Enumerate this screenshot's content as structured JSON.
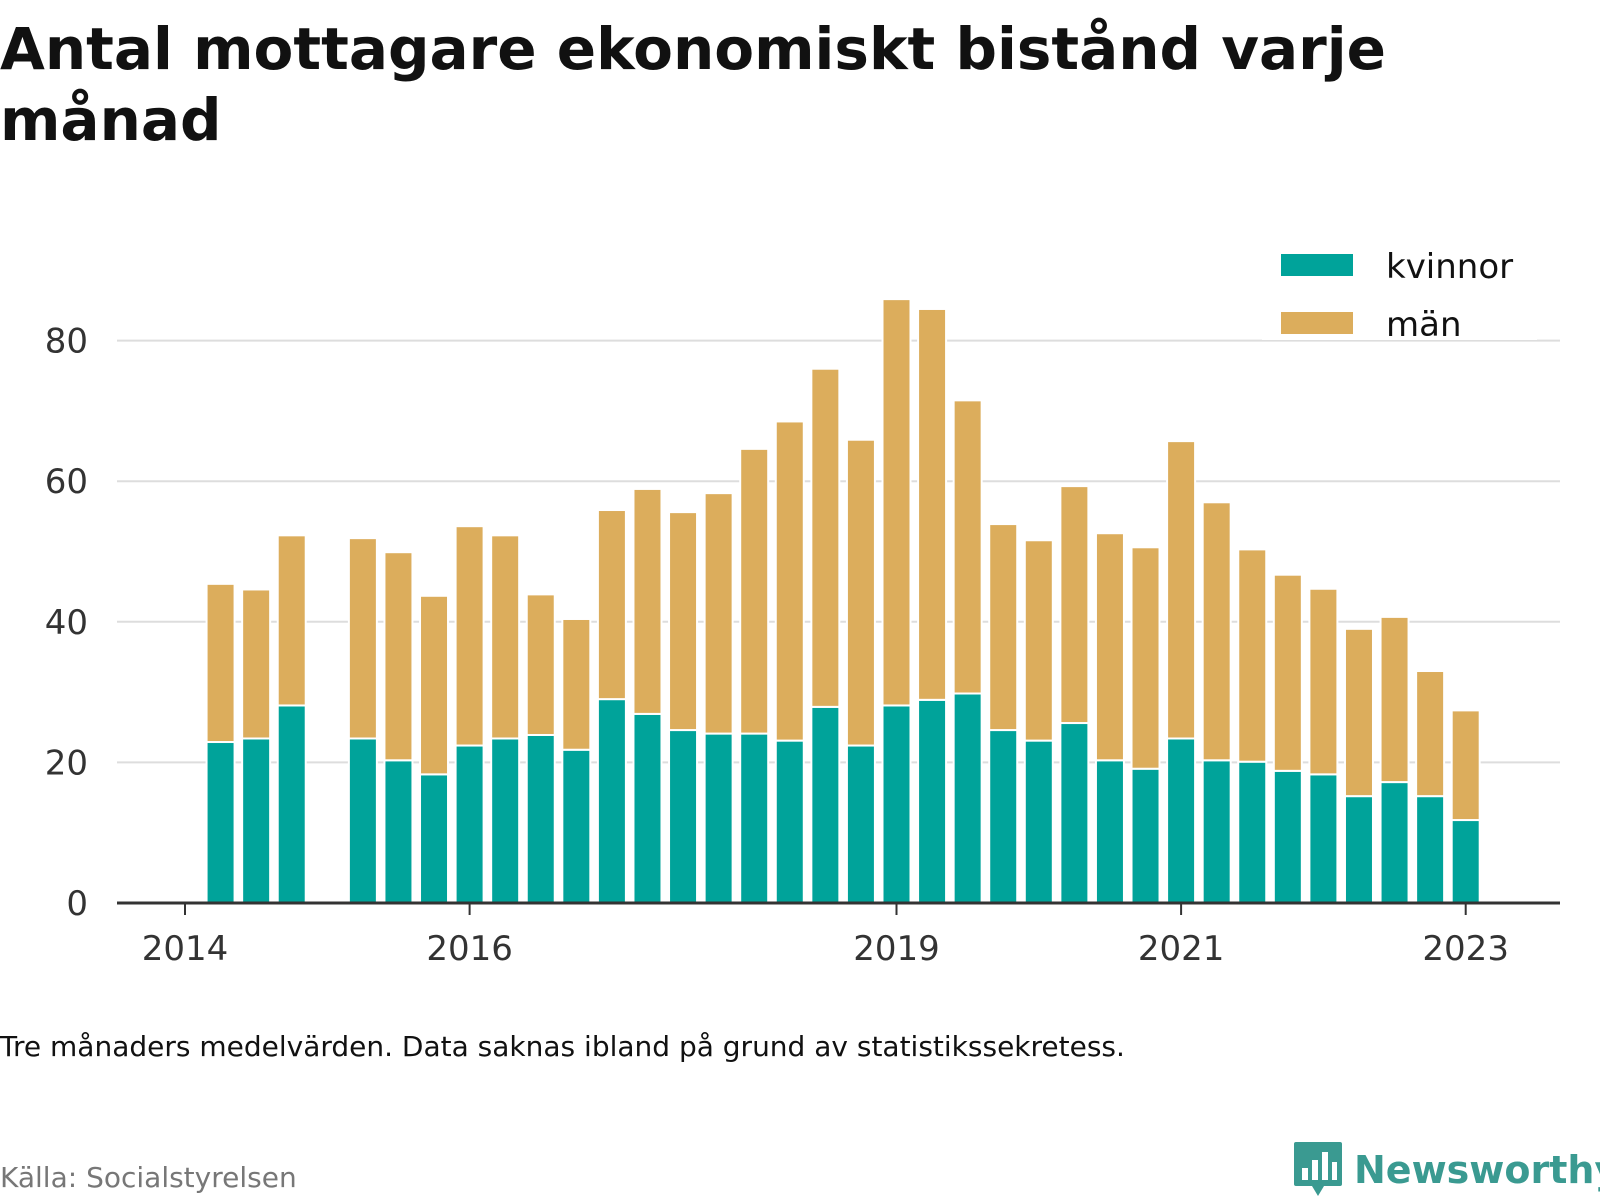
{
  "title": "Antal mottagare ekonomiskt bistånd varje månad",
  "note": "Tre månaders medelvärden. Data saknas ibland på grund av statistikssekretess.",
  "source": "Källa: Socialstyrelsen",
  "brand": {
    "name": "Newsworthy",
    "logo_icon": "bar-chart-speech-bubble-icon"
  },
  "colors": {
    "kvinnor": "#00a39a",
    "man": "#dcad5c",
    "grid": "#dddddd",
    "axis": "#333333",
    "brand": "#3a9a91"
  },
  "chart_data": {
    "type": "bar",
    "stacked": true,
    "title": "Antal mottagare ekonomiskt bistånd varje månad",
    "xlabel": "",
    "ylabel": "",
    "ylim": [
      0,
      90
    ],
    "yticks": [
      0,
      20,
      40,
      60,
      80
    ],
    "grid": true,
    "legend_position": "top-right",
    "x_ticks": [
      {
        "label": "2014",
        "date": "2014-01"
      },
      {
        "label": "2016",
        "date": "2016-01"
      },
      {
        "label": "2019",
        "date": "2019-01"
      },
      {
        "label": "2021",
        "date": "2021-01"
      },
      {
        "label": "2023",
        "date": "2023-01"
      }
    ],
    "x": [
      "2014-04",
      "2014-07",
      "2014-10",
      "2015-04",
      "2015-07",
      "2015-10",
      "2016-01",
      "2016-04",
      "2016-07",
      "2016-10",
      "2017-01",
      "2017-04",
      "2017-07",
      "2017-10",
      "2018-01",
      "2018-04",
      "2018-07",
      "2018-10",
      "2019-01",
      "2019-04",
      "2019-07",
      "2019-10",
      "2020-01",
      "2020-04",
      "2020-07",
      "2020-10",
      "2021-01",
      "2021-04",
      "2021-07",
      "2021-10",
      "2022-01",
      "2022-04",
      "2022-07",
      "2022-10",
      "2023-01"
    ],
    "series": [
      {
        "name": "kvinnor",
        "values": [
          22.9,
          23.4,
          28.1,
          23.4,
          20.3,
          18.3,
          22.4,
          23.4,
          23.9,
          21.8,
          29.0,
          26.9,
          24.6,
          24.1,
          24.1,
          23.1,
          27.9,
          22.4,
          28.1,
          28.9,
          29.8,
          24.6,
          23.1,
          25.6,
          20.3,
          19.1,
          23.4,
          20.3,
          20.1,
          18.8,
          18.3,
          15.2,
          17.2,
          15.2,
          11.8
        ]
      },
      {
        "name": "män",
        "values": [
          22.5,
          21.2,
          24.2,
          28.5,
          29.6,
          25.4,
          31.2,
          28.9,
          20.0,
          18.6,
          26.9,
          32.0,
          31.0,
          34.2,
          40.5,
          45.4,
          48.1,
          43.5,
          57.8,
          55.6,
          41.7,
          29.3,
          28.5,
          33.7,
          32.3,
          31.5,
          42.3,
          36.7,
          30.2,
          27.9,
          26.4,
          23.8,
          23.5,
          17.8,
          15.6
        ]
      }
    ]
  }
}
